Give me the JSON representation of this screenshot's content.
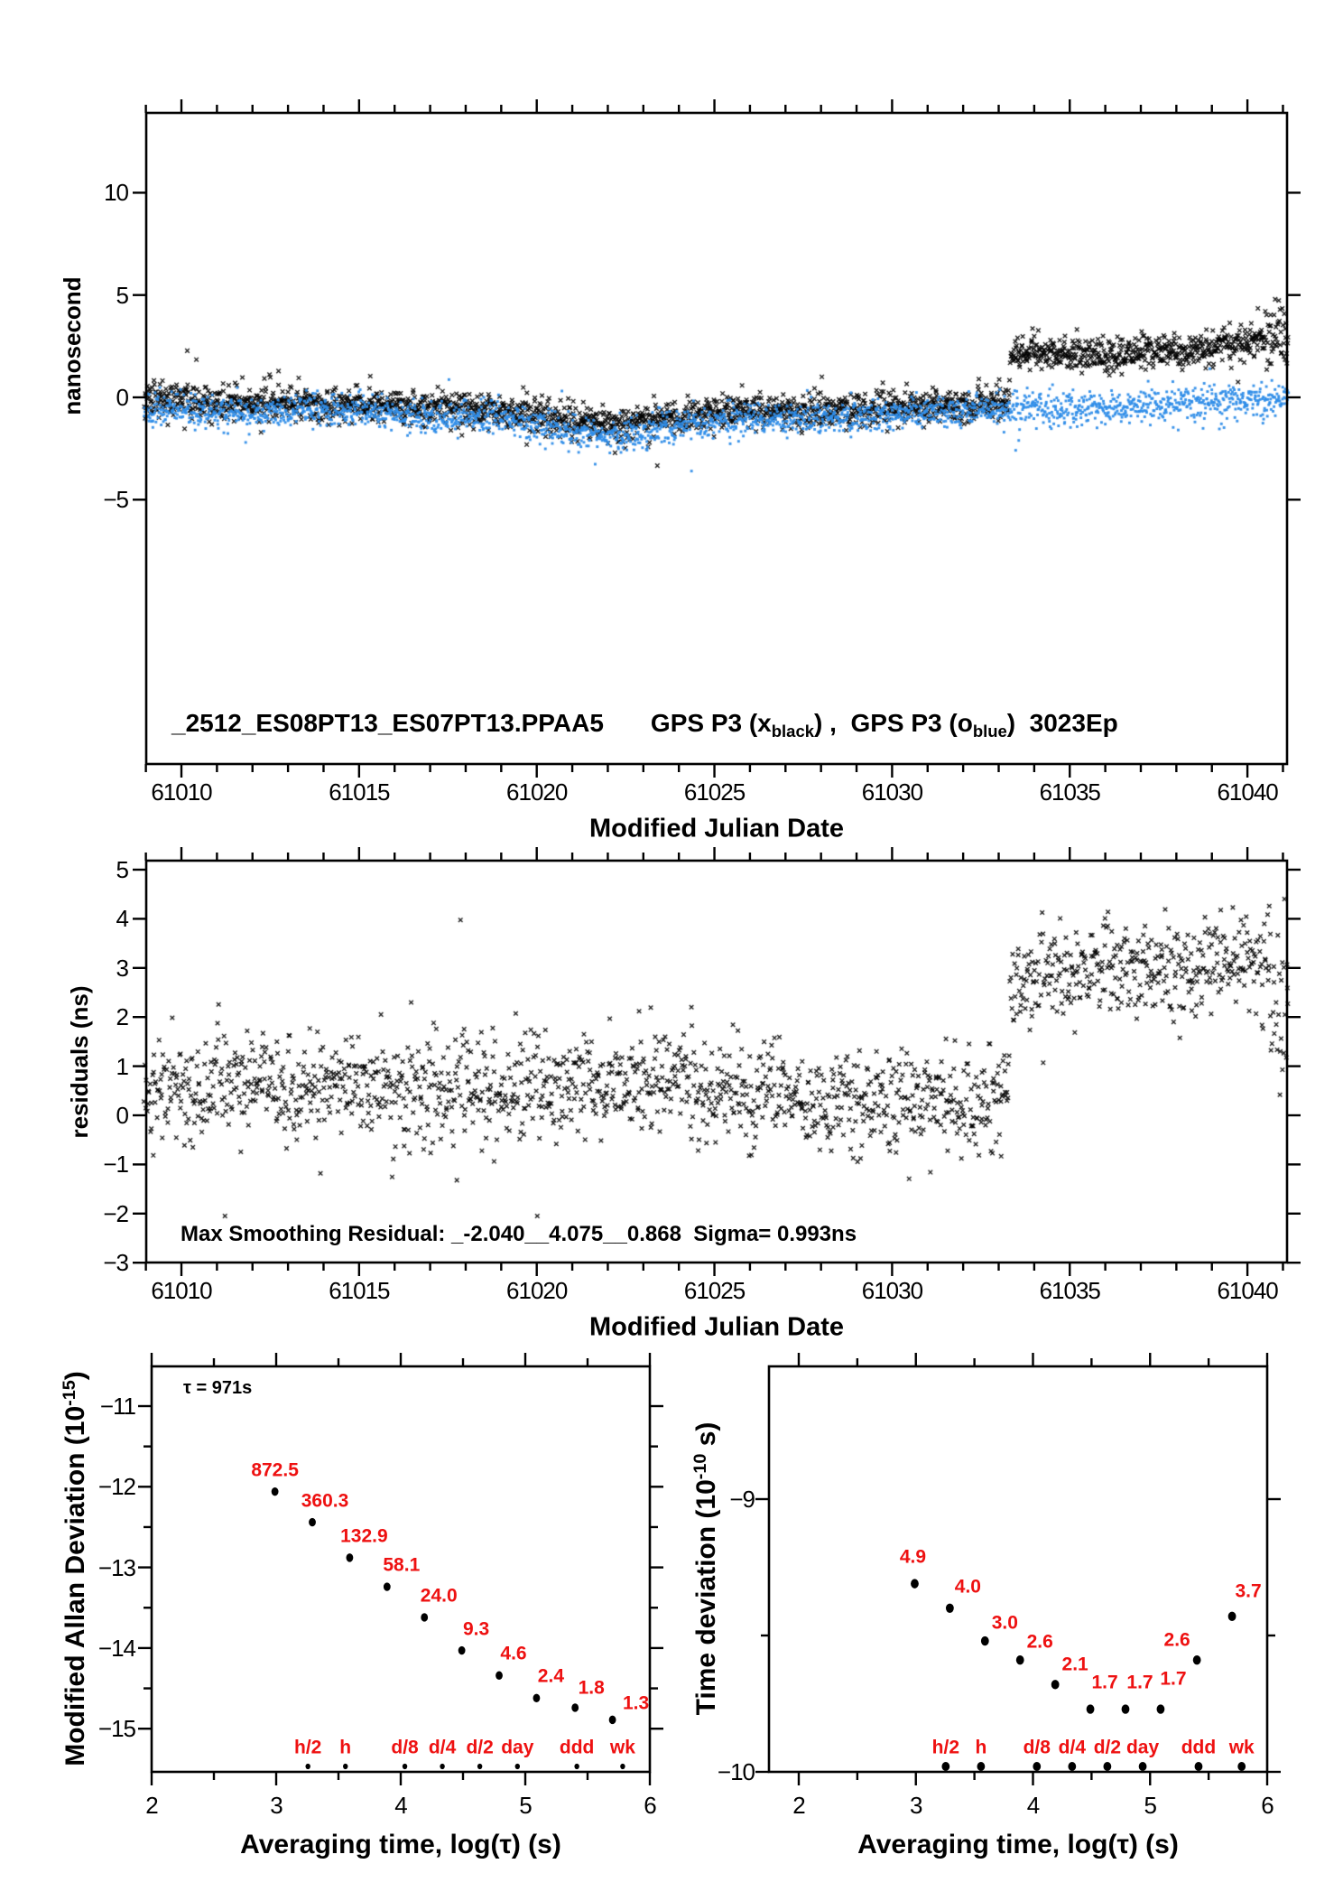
{
  "colors": {
    "marker_black": "#000000",
    "marker_blue": "#2f8de8",
    "label_red": "#ee1111",
    "axis_black": "#000000"
  },
  "chart_data": [
    {
      "id": "top-scatter",
      "type": "scatter",
      "title_file": "_2512_ES08PT13_ES07PT13.PPAA5",
      "legend": {
        "pre": "GPS P3 (x",
        "sub1": "black",
        "mid": ") ,  GPS P3 (o",
        "sub2": "blue",
        "post": ")  3023Ep"
      },
      "xlabel": "Modified Julian Date",
      "ylabel": "nanosecond",
      "xlim": [
        61008.95,
        61041.15
      ],
      "ylim": [
        -17.9,
        13.9
      ],
      "xticks": [
        61010,
        61015,
        61020,
        61025,
        61030,
        61035,
        61040
      ],
      "x_minor_step": 1,
      "yticks": [
        10,
        5,
        0,
        -5
      ],
      "series": [
        {
          "name": "GPS P3 x black",
          "marker": "x",
          "color": "#000000",
          "n": 2450,
          "sigma": 0.42,
          "seed": 11,
          "clamp": [
            -3.8,
            5.0
          ],
          "tail_x": 61040.5,
          "tail_mult": 1.9,
          "trend": [
            [
              61009,
              -0.1
            ],
            [
              61012,
              -0.35
            ],
            [
              61015,
              -0.25
            ],
            [
              61017,
              -0.5
            ],
            [
              61019,
              -0.6
            ],
            [
              61020.5,
              -1.0
            ],
            [
              61022.3,
              -1.35
            ],
            [
              61024,
              -0.95
            ],
            [
              61026,
              -0.6
            ],
            [
              61028,
              -0.7
            ],
            [
              61030,
              -0.5
            ],
            [
              61031.5,
              -0.4
            ],
            [
              61033.25,
              -0.3
            ],
            [
              61033.35,
              2.1
            ],
            [
              61035,
              2.15
            ],
            [
              61036.2,
              2.0
            ],
            [
              61037,
              2.35
            ],
            [
              61038,
              2.25
            ],
            [
              61039.5,
              2.6
            ],
            [
              61040.6,
              2.8
            ],
            [
              61041.1,
              3.2
            ]
          ]
        },
        {
          "name": "GPS P3 o blue",
          "marker": "dot",
          "color": "#2f8de8",
          "n": 2450,
          "sigma": 0.42,
          "seed": 77,
          "clamp": [
            -3.6,
            4.5
          ],
          "tail_x": 61041.5,
          "tail_mult": 1.0,
          "trend": [
            [
              61009,
              -0.55
            ],
            [
              61012,
              -0.8
            ],
            [
              61015,
              -0.6
            ],
            [
              61017,
              -0.95
            ],
            [
              61019,
              -1.0
            ],
            [
              61020.5,
              -1.5
            ],
            [
              61022.3,
              -1.95
            ],
            [
              61024,
              -1.35
            ],
            [
              61026,
              -1.0
            ],
            [
              61028,
              -1.05
            ],
            [
              61030,
              -0.85
            ],
            [
              61031.5,
              -0.7
            ],
            [
              61033.25,
              -0.6
            ],
            [
              61033.35,
              -0.5
            ],
            [
              61036,
              -0.55
            ],
            [
              61038,
              -0.35
            ],
            [
              61040,
              -0.2
            ],
            [
              61041.1,
              -0.1
            ]
          ]
        }
      ]
    },
    {
      "id": "residuals-scatter",
      "type": "scatter",
      "xlabel": "Modified Julian Date",
      "ylabel": "residuals (ns)",
      "annotation": "Max Smoothing Residual: _-2.040__4.075__0.868  Sigma= 0.993ns",
      "xlim": [
        61008.95,
        61041.15
      ],
      "ylim": [
        -3.07,
        5.1
      ],
      "xticks": [
        61010,
        61015,
        61020,
        61025,
        61030,
        61035,
        61040
      ],
      "x_minor_step": 1,
      "yticks": [
        5,
        4,
        3,
        2,
        1,
        0,
        -1,
        -2,
        -3
      ],
      "series": [
        {
          "name": "residuals x black",
          "marker": "x",
          "color": "#000000",
          "n": 1750,
          "sigma": 0.52,
          "seed": 23,
          "clamp": [
            -2.05,
            4.7
          ],
          "tail_x": 61040.4,
          "tail_mult": 1.9,
          "trend": [
            [
              61009,
              0.45
            ],
            [
              61012,
              0.6
            ],
            [
              61015,
              0.5
            ],
            [
              61017,
              0.6
            ],
            [
              61019,
              0.5
            ],
            [
              61021,
              0.6
            ],
            [
              61023,
              0.65
            ],
            [
              61025,
              0.55
            ],
            [
              61027,
              0.4
            ],
            [
              61029,
              0.25
            ],
            [
              61031,
              0.3
            ],
            [
              61033.25,
              0.3
            ],
            [
              61033.35,
              2.6
            ],
            [
              61034.5,
              2.85
            ],
            [
              61036,
              3.0
            ],
            [
              61037.5,
              2.9
            ],
            [
              61039,
              3.1
            ],
            [
              61040.4,
              3.0
            ],
            [
              61041.1,
              2.4
            ]
          ]
        }
      ]
    },
    {
      "id": "mdev",
      "type": "scatter",
      "note": "τ = 971s",
      "ylabel_parts": {
        "main": "Modified Allan Deviation (10",
        "sup": "-15",
        "close": ")"
      },
      "xlabel_parts": {
        "pre": "Averaging time, log(",
        "tau": "τ",
        "post": ") (s)"
      },
      "xlim": [
        2,
        6
      ],
      "ylim": [
        -15.54,
        -10.51
      ],
      "xticks": [
        2,
        3,
        4,
        5,
        6
      ],
      "yticks": [
        -11,
        -12,
        -13,
        -14,
        -15
      ],
      "x_minor": [
        2.5,
        3.5,
        4.5,
        5.5
      ],
      "y_minor": [
        -11.5,
        -12.5,
        -13.5,
        -14.5
      ],
      "points": {
        "x": [
          2.99,
          3.29,
          3.59,
          3.89,
          4.19,
          4.49,
          4.79,
          5.09,
          5.4,
          5.7
        ],
        "y": [
          -12.06,
          -12.44,
          -12.88,
          -13.24,
          -13.62,
          -14.03,
          -14.34,
          -14.62,
          -14.74,
          -14.89
        ],
        "labels": [
          "872.5",
          "360.3",
          "132.9",
          "58.1",
          "24.0",
          "9.3",
          "4.6",
          "2.4",
          "1.8",
          "1.3"
        ],
        "label_dx": [
          0,
          14,
          16,
          16,
          16,
          16,
          16,
          16,
          18,
          26
        ],
        "label_dy": [
          -24,
          -24,
          -24,
          -24,
          -24,
          -24,
          -24,
          -24,
          -22,
          -18
        ]
      },
      "tau_marks": {
        "x": [
          3.255,
          3.556,
          4.033,
          4.334,
          4.635,
          4.937,
          5.414,
          5.782
        ],
        "labels": [
          "h/2",
          "h",
          "d/8",
          "d/4",
          "d/2",
          "day",
          "ddd",
          "wk"
        ]
      }
    },
    {
      "id": "tdev",
      "type": "scatter",
      "ylabel_parts": {
        "main": "Time deviation (10",
        "sup": "-10",
        "close": " s)"
      },
      "xlabel_parts": {
        "pre": "Averaging time, log(",
        "tau": "τ",
        "post": ") (s)"
      },
      "xlim": [
        1.75,
        6
      ],
      "ylim": [
        -10,
        -8.51
      ],
      "xticks": [
        2,
        3,
        4,
        5,
        6
      ],
      "yticks": [
        -9,
        -10
      ],
      "x_minor": [
        2.5,
        3.5,
        4.5,
        5.5
      ],
      "y_minor": [
        -9.5
      ],
      "points": {
        "x": [
          2.99,
          3.29,
          3.59,
          3.89,
          4.19,
          4.49,
          4.79,
          5.09,
          5.4,
          5.7
        ],
        "y": [
          -9.31,
          -9.4,
          -9.52,
          -9.59,
          -9.68,
          -9.77,
          -9.77,
          -9.77,
          -9.59,
          -9.43
        ],
        "labels": [
          "4.9",
          "4.0",
          "3.0",
          "2.6",
          "2.1",
          "1.7",
          "1.7",
          "1.7",
          "2.6",
          "3.7"
        ],
        "label_dx": [
          -2,
          20,
          22,
          22,
          22,
          16,
          16,
          14,
          -22,
          18
        ],
        "label_dy": [
          -30,
          -24,
          -20,
          -20,
          -22,
          -30,
          -30,
          -34,
          -22,
          -28
        ]
      },
      "tau_marks": {
        "x": [
          3.255,
          3.556,
          4.033,
          4.334,
          4.635,
          4.937,
          5.414,
          5.782
        ],
        "labels": [
          "h/2",
          "h",
          "d/8",
          "d/4",
          "d/2",
          "day",
          "ddd",
          "wk"
        ]
      }
    }
  ]
}
